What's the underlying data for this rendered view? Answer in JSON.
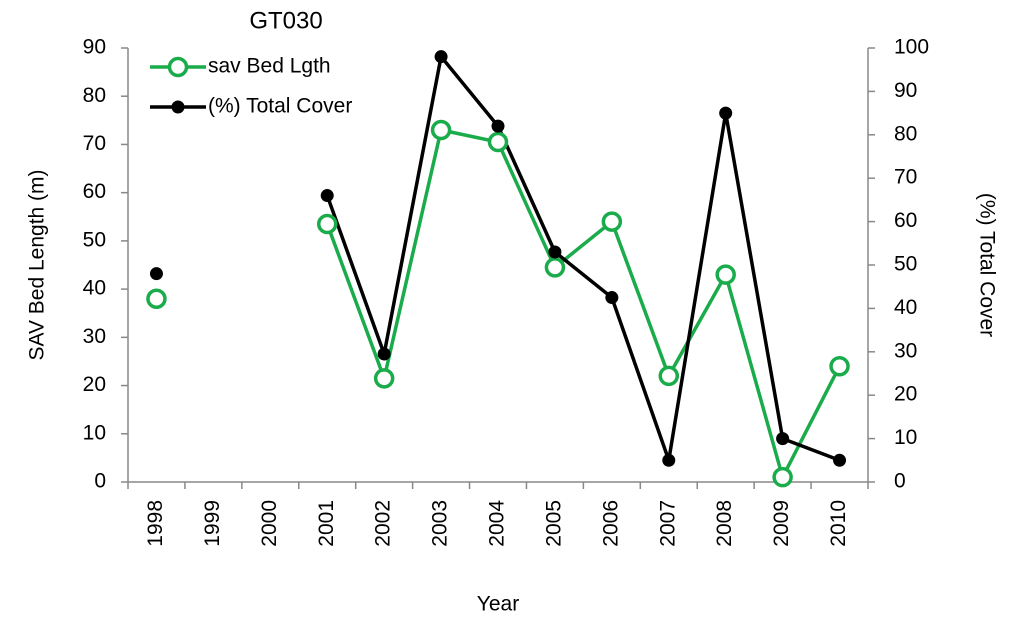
{
  "chart_data": {
    "type": "line",
    "title": "GT030",
    "xlabel": "Year",
    "ylabel": "SAV Bed Length (m)",
    "y2label": "(%) Total Cover",
    "categories": [
      "1998",
      "1999",
      "2000",
      "2001",
      "2002",
      "2003",
      "2004",
      "2005",
      "2006",
      "2007",
      "2008",
      "2009",
      "2010"
    ],
    "series": [
      {
        "name": "sav Bed Lgth",
        "color": "#1aab4b",
        "marker": "open-circle",
        "values": [
          38,
          null,
          null,
          53.5,
          21.5,
          73,
          70.5,
          44.5,
          54,
          22,
          43,
          1,
          24
        ]
      },
      {
        "name": "(%) Total Cover",
        "color": "#000000",
        "marker": "filled-circle",
        "axis": "y2",
        "values": [
          48,
          null,
          null,
          66,
          29.5,
          98,
          82,
          53,
          42.5,
          5,
          85,
          10,
          5
        ]
      }
    ],
    "ylim": [
      0,
      90
    ],
    "yticks": [
      0,
      10,
      20,
      30,
      40,
      50,
      60,
      70,
      80,
      90
    ],
    "y2lim": [
      0,
      100
    ],
    "y2ticks": [
      0,
      10,
      20,
      30,
      40,
      50,
      60,
      70,
      80,
      90,
      100
    ],
    "legend": "upper left"
  }
}
